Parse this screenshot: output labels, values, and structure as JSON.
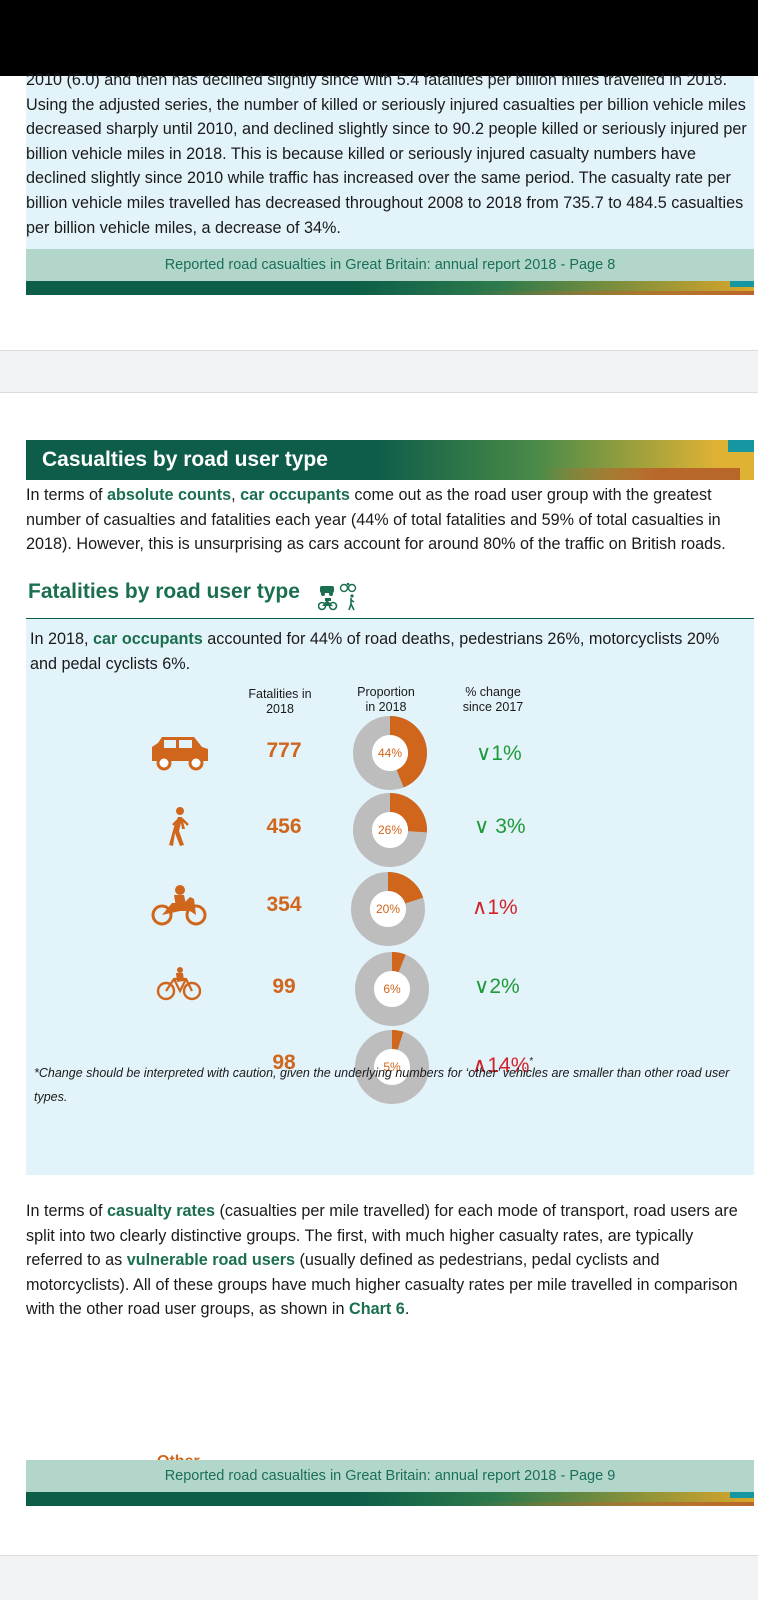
{
  "page1": {
    "paragraph": "2010 (6.0) and then has declined slightly since with 5.4 fatalities per billion miles travelled in 2018. Using the adjusted series, the number of killed or seriously injured casualties per billion vehicle miles decreased sharply until 2010, and declined slightly since to 90.2 people killed or seriously injured per billion vehicle miles in 2018. This is because killed or seriously injured casualty numbers have declined slightly since 2010 while traffic has increased over the same period. The casualty rate per billion vehicle miles travelled has decreased throughout 2008 to 2018 from 735.7 to 484.5 casualties per billion vehicle miles, a decrease of 34%.",
    "footer": "Reported road casualties in Great Britain: annual report 2018 - Page 8"
  },
  "page2": {
    "section_title": "Casualties by road user type",
    "intro": {
      "p1": "In terms of ",
      "b1": "absolute counts",
      "p2": ", ",
      "b2": "car occupants",
      "p3": " come out as the road user group with the greatest number of casualties and fatalities each year (44% of total fatalities and 59% of total casualties in 2018). However, this is unsurprising as cars account for around 80% of the traffic on British roads."
    },
    "sub_title": "Fatalities by road user type",
    "panel_intro": {
      "p1": "In 2018, ",
      "b1": "car occupants",
      "p2": " accounted for 44% of road deaths, pedestrians 26%, motorcyclists 20% and pedal cyclists 6%."
    },
    "col_headers": {
      "fatalities_1": "Fatalities in",
      "fatalities_2": "2018",
      "proportion_1": "Proportion",
      "proportion_2": "in 2018",
      "change_1": "% change",
      "change_2": "since 2017"
    },
    "rows": [
      {
        "icon": "car-icon",
        "fatalities": "777",
        "proportion": 44,
        "proportion_label": "44%",
        "change": "∨1%",
        "direction": "down"
      },
      {
        "icon": "pedestrian-icon",
        "fatalities": "456",
        "proportion": 26,
        "proportion_label": "26%",
        "change": "∨ 3%",
        "direction": "down"
      },
      {
        "icon": "motorcycle-icon",
        "fatalities": "354",
        "proportion": 20,
        "proportion_label": "20%",
        "change": "∧1%",
        "direction": "up"
      },
      {
        "icon": "bicycle-icon",
        "fatalities": "99",
        "proportion": 6,
        "proportion_label": "6%",
        "change": "∨2%",
        "direction": "down"
      },
      {
        "label": "Other",
        "fatalities": "98",
        "proportion": 5,
        "proportion_label": "5%",
        "change": "∧14%",
        "asterisk": "*",
        "direction": "up"
      }
    ],
    "note": "*Change should be interpreted with caution, given the underlying numbers for ‘other’ vehicles are smaller than other road user types.",
    "rates": {
      "p1": "In terms of ",
      "b1": "casualty rates",
      "p2": " (casualties per mile travelled) for each mode of transport, road users are split into two clearly distinctive groups. The first, with much higher casualty rates, are typically referred to as ",
      "b2": "vulnerable road users",
      "p3": " (usually defined as pedestrians, pedal cyclists and motorcyclists). All of these groups have much higher casualty rates per mile travelled in comparison with the other road user groups, as shown in ",
      "b3": "Chart 6",
      "p4": "."
    },
    "footer": "Reported road casualties in Great Britain: annual report 2018 - Page 9"
  },
  "colors": {
    "accent_green": "#1a6f4e",
    "orange": "#d0651c",
    "donut_grey": "#bdbdbd",
    "down_green": "#1e9a3a",
    "up_red": "#d2232a"
  }
}
